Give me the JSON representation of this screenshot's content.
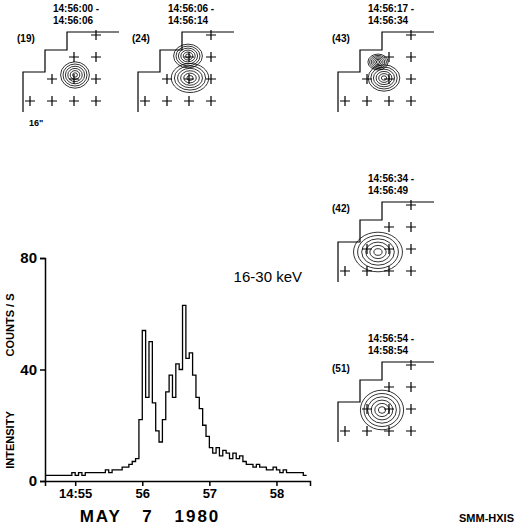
{
  "chart_data": {
    "type": "line",
    "title": "16-30 keV",
    "ylabel": [
      "COUNTS / S",
      "INTENSITY"
    ],
    "xlabel": "MAY 7 1980",
    "source": "SMM-HXIS",
    "line_style": "step",
    "color": "#000000",
    "xlim": [
      54.55,
      58.5
    ],
    "xticks": [
      {
        "value": 55,
        "label": "14:55"
      },
      56,
      57,
      58
    ],
    "ylim": [
      0,
      80
    ],
    "yticks": [
      0,
      40,
      80
    ],
    "x": [
      54.55,
      54.6,
      54.65,
      54.7,
      54.75,
      54.8,
      54.85,
      54.9,
      54.95,
      55,
      55.05,
      55.1,
      55.15,
      55.2,
      55.25,
      55.3,
      55.35,
      55.4,
      55.45,
      55.5,
      55.55,
      55.6,
      55.65,
      55.7,
      55.75,
      55.8,
      55.85,
      55.9,
      55.95,
      56,
      56.05,
      56.1,
      56.15,
      56.2,
      56.25,
      56.3,
      56.35,
      56.4,
      56.45,
      56.5,
      56.55,
      56.6,
      56.65,
      56.7,
      56.75,
      56.8,
      56.85,
      56.9,
      56.95,
      57,
      57.05,
      57.1,
      57.15,
      57.2,
      57.25,
      57.3,
      57.35,
      57.4,
      57.45,
      57.5,
      57.55,
      57.6,
      57.65,
      57.7,
      57.75,
      57.8,
      57.85,
      57.9,
      57.95,
      58,
      58.05,
      58.1,
      58.15,
      58.2,
      58.25,
      58.3,
      58.35,
      58.4,
      58.45
    ],
    "values": [
      2,
      2,
      2,
      2,
      2,
      2,
      2,
      2,
      3,
      2,
      3,
      2,
      3,
      3,
      3,
      3,
      3,
      3,
      4,
      3,
      4,
      4,
      4,
      5,
      5,
      6,
      7,
      8,
      22,
      54,
      30,
      50,
      28,
      18,
      14,
      22,
      32,
      38,
      30,
      42,
      40,
      63,
      44,
      46,
      38,
      30,
      26,
      20,
      16,
      12,
      10,
      12,
      9,
      11,
      10,
      8,
      10,
      8,
      9,
      7,
      6,
      6,
      5,
      6,
      5,
      5,
      4,
      4,
      5,
      4,
      3,
      4,
      3,
      3,
      3,
      3,
      3,
      2,
      2
    ]
  },
  "images": [
    {
      "time": [
        "14:56:00 -",
        "14:56:06"
      ],
      "count_label": "(19)",
      "scale_label": "16\""
    },
    {
      "time": [
        "14:56:06 -",
        "14:56:14"
      ],
      "count_label": "(24)"
    },
    {
      "time": [
        "14:56:17 -",
        "14:56:34"
      ],
      "count_label": "(43)"
    },
    {
      "time": [
        "14:56:34 -",
        "14:56:49"
      ],
      "count_label": "(42)"
    },
    {
      "time": [
        "14:56:54 -",
        "14:58:54"
      ],
      "count_label": "(51)"
    }
  ]
}
